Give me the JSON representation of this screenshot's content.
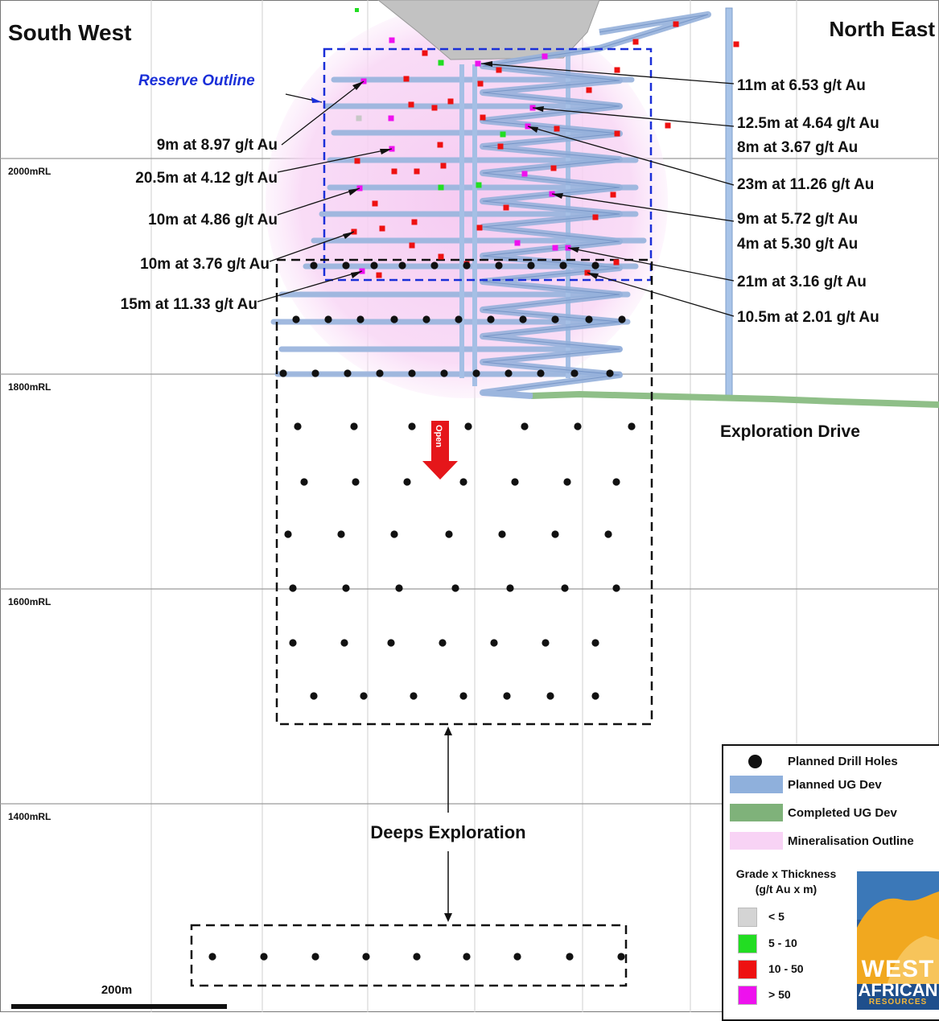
{
  "headings": {
    "left": "South West",
    "right": "North East"
  },
  "rl_labels": [
    "2000mRL",
    "1800mRL",
    "1600mRL",
    "1400mRL"
  ],
  "reserve_outline_label": "Reserve Outline",
  "intercepts_left": [
    "9m at 8.97 g/t Au",
    "20.5m at 4.12 g/t Au",
    "10m at 4.86 g/t Au",
    "10m at 3.76 g/t Au",
    "15m at 11.33 g/t Au"
  ],
  "intercepts_right": [
    "11m at 6.53 g/t Au",
    "12.5m at 4.64 g/t Au",
    "8m at 3.67 g/t Au",
    "23m at 11.26 g/t Au",
    "9m at 5.72 g/t Au",
    "4m at 5.30 g/t Au",
    "21m at 3.16 g/t Au",
    "10.5m at 2.01 g/t Au"
  ],
  "exploration_drive_label": "Exploration Drive",
  "open_label": "Open",
  "deeps_label": "Deeps Exploration",
  "scale_label": "200m",
  "legend": {
    "items": [
      "Planned Drill Holes",
      "Planned UG Dev",
      "Completed UG Dev",
      "Mineralisation Outline"
    ],
    "grade_title_1": "Grade x Thickness",
    "grade_title_2": "(g/t Au x m)",
    "grades": [
      {
        "label": "< 5",
        "color": "#d4d4d4"
      },
      {
        "label": "5 - 10",
        "color": "#22dd22"
      },
      {
        "label": "10 - 50",
        "color": "#ee1111"
      },
      {
        "label": "> 50",
        "color": "#ee11ee"
      }
    ]
  },
  "logo": {
    "line1": "WEST",
    "line2": "AFRICAN",
    "line3": "RESOURCES"
  },
  "colors": {
    "planned_dev": "#8fb0dc",
    "completed_dev": "#7fb27a",
    "mineralisation": "#f8d3f5",
    "reserve_outline": "#1a2fd8",
    "open_arrow": "#e5161a"
  }
}
